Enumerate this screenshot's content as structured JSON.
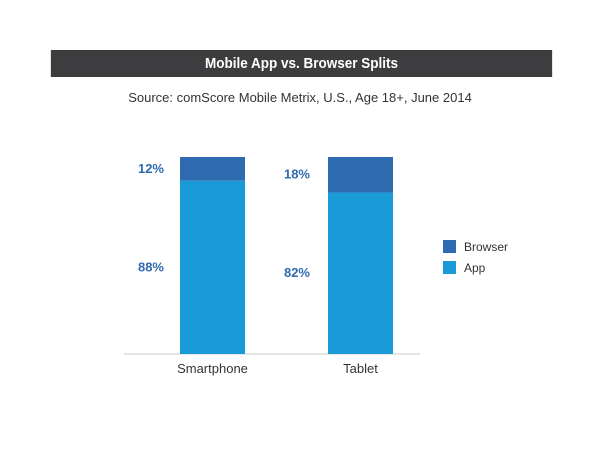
{
  "title": "Mobile App vs. Browser Splits",
  "subtitle": "Source: comScore Mobile Metrix, U.S., Age 18+, June 2014",
  "chart_data": {
    "type": "bar",
    "stacked": true,
    "percent_stacked": true,
    "categories": [
      "Smartphone",
      "Tablet"
    ],
    "series": [
      {
        "name": "App",
        "values": [
          88,
          82
        ],
        "labels": [
          "88%",
          "82%"
        ],
        "color": "#1a9ad6"
      },
      {
        "name": "Browser",
        "values": [
          12,
          18
        ],
        "labels": [
          "12%",
          "18%"
        ],
        "color": "#2f6bb0"
      }
    ],
    "ylim": [
      0,
      100
    ],
    "legend": "right",
    "grid": false
  }
}
